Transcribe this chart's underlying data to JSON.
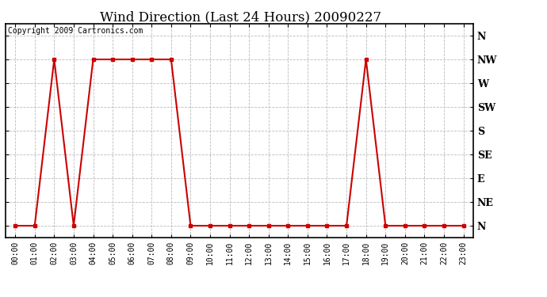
{
  "title": "Wind Direction (Last 24 Hours) 20090227",
  "copyright": "Copyright 2009 Cartronics.com",
  "line_color": "#cc0000",
  "background_color": "#ffffff",
  "grid_color": "#bbbbbb",
  "border_color": "#000000",
  "x_labels": [
    "00:00",
    "01:00",
    "02:00",
    "03:00",
    "04:00",
    "05:00",
    "06:00",
    "07:00",
    "08:00",
    "09:00",
    "10:00",
    "11:00",
    "12:00",
    "13:00",
    "14:00",
    "15:00",
    "16:00",
    "17:00",
    "18:00",
    "19:00",
    "20:00",
    "21:00",
    "22:00",
    "23:00"
  ],
  "y_labels": [
    "N",
    "NE",
    "E",
    "SE",
    "S",
    "SW",
    "W",
    "NW",
    "N"
  ],
  "y_values": [
    0,
    1,
    2,
    3,
    4,
    5,
    6,
    7,
    8
  ],
  "wind_times": [
    0,
    1,
    2,
    3,
    4,
    5,
    6,
    7,
    8,
    9,
    10,
    11,
    12,
    13,
    14,
    15,
    16,
    17,
    18,
    19,
    20,
    21,
    22,
    23
  ],
  "wind_dirs": [
    0,
    0,
    7,
    0,
    7,
    7,
    7,
    7,
    7,
    0,
    0,
    0,
    0,
    0,
    0,
    0,
    0,
    0,
    7,
    0,
    0,
    0,
    0,
    0
  ],
  "marker_size": 3.5,
  "line_width": 1.5,
  "title_fontsize": 12,
  "ylabel_fontsize": 9,
  "xlabel_fontsize": 7,
  "copyright_fontsize": 7
}
